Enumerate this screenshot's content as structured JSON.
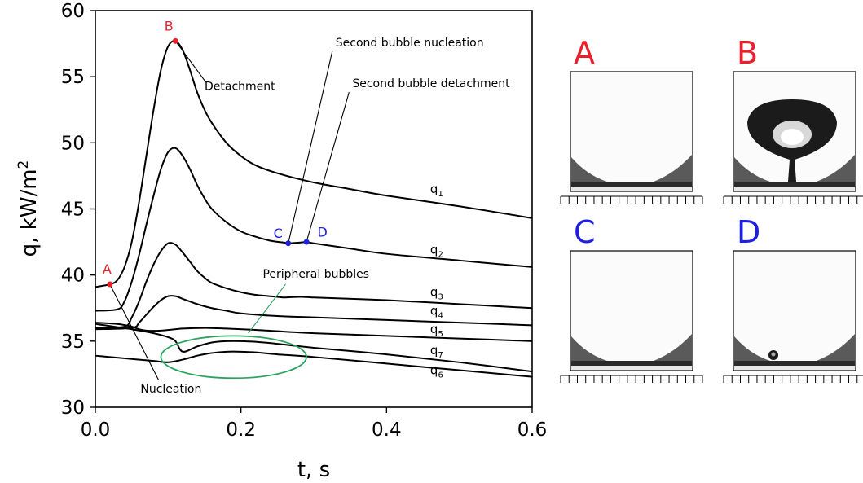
{
  "chart_data": {
    "type": "line",
    "xlabel": "t, s",
    "ylabel_main": "q, kW/m",
    "ylabel_sup": "2",
    "xlim": [
      0.0,
      0.6
    ],
    "ylim": [
      30,
      60
    ],
    "x_ticks": [
      0.0,
      0.2,
      0.4,
      0.6
    ],
    "x_tick_labels": [
      "0.0",
      "0.2",
      "0.4",
      "0.6"
    ],
    "y_ticks": [
      30,
      35,
      40,
      45,
      50,
      55,
      60
    ],
    "y_tick_labels": [
      "30",
      "35",
      "40",
      "45",
      "50",
      "55",
      "60"
    ],
    "grid": false,
    "series": [
      {
        "name": "q1",
        "label_base": "q",
        "label_sub": "1",
        "label_at": [
          0.46,
          46.2
        ],
        "x": [
          0,
          0.02,
          0.03,
          0.04,
          0.05,
          0.06,
          0.07,
          0.08,
          0.09,
          0.1,
          0.11,
          0.12,
          0.13,
          0.14,
          0.15,
          0.16,
          0.18,
          0.2,
          0.22,
          0.25,
          0.3,
          0.35,
          0.4,
          0.5,
          0.6
        ],
        "y": [
          39.1,
          39.3,
          39.6,
          40.6,
          42.5,
          45.5,
          49.0,
          52.5,
          55.5,
          57.3,
          57.7,
          57.0,
          55.5,
          53.8,
          52.5,
          51.5,
          50.0,
          49.0,
          48.3,
          47.7,
          47.0,
          46.5,
          46.0,
          45.2,
          44.3
        ]
      },
      {
        "name": "q2",
        "label_base": "q",
        "label_sub": "2",
        "label_at": [
          0.46,
          41.6
        ],
        "x": [
          0,
          0.03,
          0.04,
          0.05,
          0.06,
          0.07,
          0.08,
          0.09,
          0.1,
          0.11,
          0.12,
          0.13,
          0.14,
          0.15,
          0.16,
          0.18,
          0.2,
          0.22,
          0.24,
          0.26,
          0.265,
          0.28,
          0.29,
          0.3,
          0.35,
          0.4,
          0.5,
          0.6
        ],
        "y": [
          37.3,
          37.4,
          38.0,
          39.5,
          41.5,
          43.8,
          46.0,
          48.0,
          49.3,
          49.6,
          49.0,
          48.0,
          46.8,
          45.8,
          45.0,
          44.0,
          43.3,
          42.9,
          42.6,
          42.45,
          42.4,
          42.45,
          42.5,
          42.4,
          42.0,
          41.6,
          41.1,
          40.6
        ]
      },
      {
        "name": "q3",
        "label_base": "q",
        "label_sub": "3",
        "label_at": [
          0.46,
          38.4
        ],
        "x": [
          0,
          0.04,
          0.05,
          0.06,
          0.07,
          0.08,
          0.09,
          0.1,
          0.11,
          0.12,
          0.13,
          0.14,
          0.15,
          0.16,
          0.18,
          0.2,
          0.22,
          0.25,
          0.26,
          0.28,
          0.3,
          0.4,
          0.5,
          0.6
        ],
        "y": [
          36.0,
          36.1,
          36.8,
          38.0,
          39.5,
          40.8,
          41.8,
          42.4,
          42.3,
          41.7,
          41.0,
          40.3,
          39.8,
          39.4,
          39.0,
          38.7,
          38.5,
          38.35,
          38.3,
          38.35,
          38.3,
          38.1,
          37.8,
          37.5
        ]
      },
      {
        "name": "q4",
        "label_base": "q",
        "label_sub": "4",
        "label_at": [
          0.46,
          37.0
        ],
        "x": [
          0,
          0.05,
          0.06,
          0.07,
          0.08,
          0.09,
          0.1,
          0.11,
          0.12,
          0.13,
          0.14,
          0.16,
          0.18,
          0.2,
          0.25,
          0.3,
          0.4,
          0.5,
          0.6
        ],
        "y": [
          35.9,
          36.0,
          36.4,
          37.0,
          37.6,
          38.1,
          38.4,
          38.4,
          38.2,
          38.0,
          37.8,
          37.5,
          37.3,
          37.1,
          36.9,
          36.8,
          36.6,
          36.4,
          36.2
        ]
      },
      {
        "name": "q5",
        "label_base": "q",
        "label_sub": "5",
        "label_at": [
          0.46,
          35.6
        ],
        "x": [
          0,
          0.03,
          0.05,
          0.06,
          0.07,
          0.09,
          0.12,
          0.15,
          0.18,
          0.22,
          0.3,
          0.4,
          0.5,
          0.6
        ],
        "y": [
          36.4,
          36.3,
          36.1,
          35.9,
          35.8,
          35.8,
          35.95,
          36.0,
          35.95,
          35.85,
          35.6,
          35.4,
          35.2,
          35.0
        ]
      },
      {
        "name": "q7",
        "label_base": "q",
        "label_sub": "7",
        "label_at": [
          0.46,
          34.0
        ],
        "x": [
          0,
          0.05,
          0.08,
          0.1,
          0.11,
          0.12,
          0.14,
          0.16,
          0.18,
          0.2,
          0.22,
          0.25,
          0.3,
          0.4,
          0.5,
          0.6
        ],
        "y": [
          36.3,
          35.9,
          35.6,
          35.3,
          35.0,
          34.2,
          34.6,
          34.9,
          35.0,
          35.0,
          34.95,
          34.8,
          34.5,
          34.0,
          33.4,
          32.7
        ]
      },
      {
        "name": "q6",
        "label_base": "q",
        "label_sub": "6",
        "label_at": [
          0.46,
          32.5
        ],
        "x": [
          0,
          0.04,
          0.08,
          0.1,
          0.12,
          0.14,
          0.16,
          0.18,
          0.2,
          0.22,
          0.25,
          0.3,
          0.4,
          0.5,
          0.6
        ],
        "y": [
          33.9,
          33.7,
          33.5,
          33.4,
          33.6,
          33.9,
          34.1,
          34.2,
          34.2,
          34.15,
          34.0,
          33.8,
          33.3,
          32.8,
          32.3
        ]
      }
    ],
    "markers": [
      {
        "label": "A",
        "x": 0.02,
        "y": 39.3,
        "color": "#e8202a",
        "label_dx": -0.004,
        "label_dy": 0.8
      },
      {
        "label": "B",
        "x": 0.11,
        "y": 57.7,
        "color": "#e8202a",
        "label_dx": -0.009,
        "label_dy": 0.8
      },
      {
        "label": "C",
        "x": 0.265,
        "y": 42.4,
        "color": "#1f1fe0",
        "label_dx": -0.014,
        "label_dy": 0.4
      },
      {
        "label": "D",
        "x": 0.29,
        "y": 42.5,
        "color": "#1f1fe0",
        "label_dx": 0.022,
        "label_dy": 0.4
      }
    ],
    "annotations": [
      {
        "text": "Detachment",
        "text_at": [
          0.15,
          54.0
        ],
        "point": [
          0.11,
          57.7
        ],
        "color": "#000000"
      },
      {
        "text": "Second bubble nucleation",
        "text_at": [
          0.33,
          57.3
        ],
        "point": [
          0.265,
          42.4
        ],
        "color": "#000000"
      },
      {
        "text": "Second bubble detachment",
        "text_at": [
          0.353,
          54.2
        ],
        "point": [
          0.29,
          42.5
        ],
        "color": "#000000"
      },
      {
        "text": "Peripheral bubbles",
        "text_at": [
          0.23,
          39.8
        ],
        "point": [
          0.21,
          35.6
        ],
        "color": "#2ca25f"
      },
      {
        "text": "Nucleation",
        "text_at": [
          0.062,
          31.1
        ],
        "point": [
          0.02,
          39.3
        ],
        "color": "#000000"
      }
    ],
    "ellipse": {
      "cx": 0.19,
      "cy": 33.8,
      "rx": 0.1,
      "ry": 1.6,
      "color": "#2ca25f"
    }
  },
  "photos": [
    {
      "letter": "A",
      "letter_color": "#e8202a",
      "state": "flat"
    },
    {
      "letter": "B",
      "letter_color": "#e8202a",
      "state": "large-bubble"
    },
    {
      "letter": "C",
      "letter_color": "#1f1fe0",
      "state": "flat"
    },
    {
      "letter": "D",
      "letter_color": "#1f1fe0",
      "state": "small-bubble"
    }
  ]
}
